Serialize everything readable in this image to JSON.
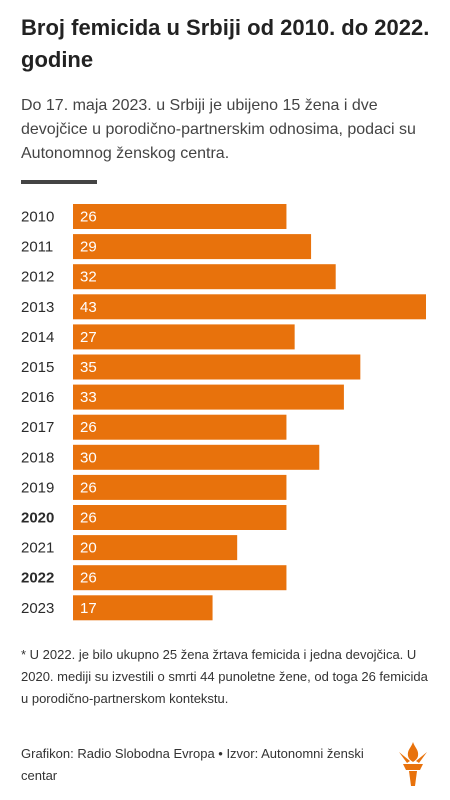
{
  "title": "Broj femicida u Srbiji od 2010. do 2022. godine",
  "subtitle": "Do 17. maja 2023. u Srbiji je ubijeno 15 žena i dve devojčice u porodično-partnerskim odnosima, podaci su Autonomnog ženskog centra.",
  "footnote": "* U 2022. je bilo ukupno 25 žena žrtava femicida i jedna devojčica. U 2020. mediji su izvestili o smrti 44 punoletne žene, od toga 26 femicida u porodično-partnerskom kontekstu.",
  "credit": "Grafikon: Radio Slobodna Evropa • Izvor: Autonomni ženski centar",
  "colors": {
    "bar": "#e8720c",
    "bar_label": "#ffffff",
    "text": "#2b2b2b"
  },
  "logo_icon": "rfe-torch-icon",
  "chart_data": {
    "type": "bar",
    "orientation": "horizontal",
    "categories": [
      "2010",
      "2011",
      "2012",
      "2013",
      "2014",
      "2015",
      "2016",
      "2017",
      "2018",
      "2019",
      "2020",
      "2021",
      "2022",
      "2023"
    ],
    "values": [
      26,
      29,
      32,
      43,
      27,
      35,
      33,
      26,
      30,
      26,
      26,
      20,
      26,
      17
    ],
    "bold_categories": [
      "2020",
      "2022"
    ],
    "xlim": [
      0,
      43
    ],
    "grid": false,
    "legend": false
  }
}
